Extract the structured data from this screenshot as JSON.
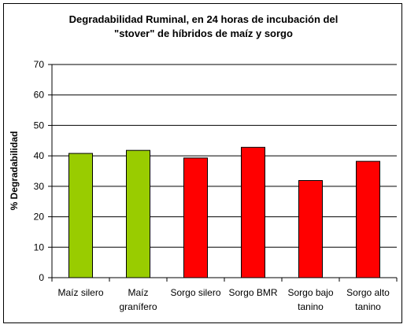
{
  "chart_data": {
    "type": "bar",
    "title_lines": [
      "Degradabilidad Ruminal, en 24 horas de incubación del",
      "\"stover\" de híbridos de maíz y sorgo"
    ],
    "ylabel": "% Degradabilidad",
    "xlabel": "",
    "ylim": [
      0,
      70
    ],
    "yticks": [
      0,
      10,
      20,
      30,
      40,
      50,
      60,
      70
    ],
    "grid": true,
    "legend": "none",
    "categories": [
      [
        "Maíz silero"
      ],
      [
        "Maíz",
        "granífero"
      ],
      [
        "Sorgo silero"
      ],
      [
        "Sorgo BMR"
      ],
      [
        "Sorgo bajo",
        "tanino"
      ],
      [
        "Sorgo alto",
        "tanino"
      ]
    ],
    "values": [
      40.8,
      41.8,
      39.3,
      42.8,
      31.9,
      38.2
    ],
    "bar_colors": [
      "#99cc00",
      "#99cc00",
      "#ff0000",
      "#ff0000",
      "#ff0000",
      "#ff0000"
    ]
  }
}
